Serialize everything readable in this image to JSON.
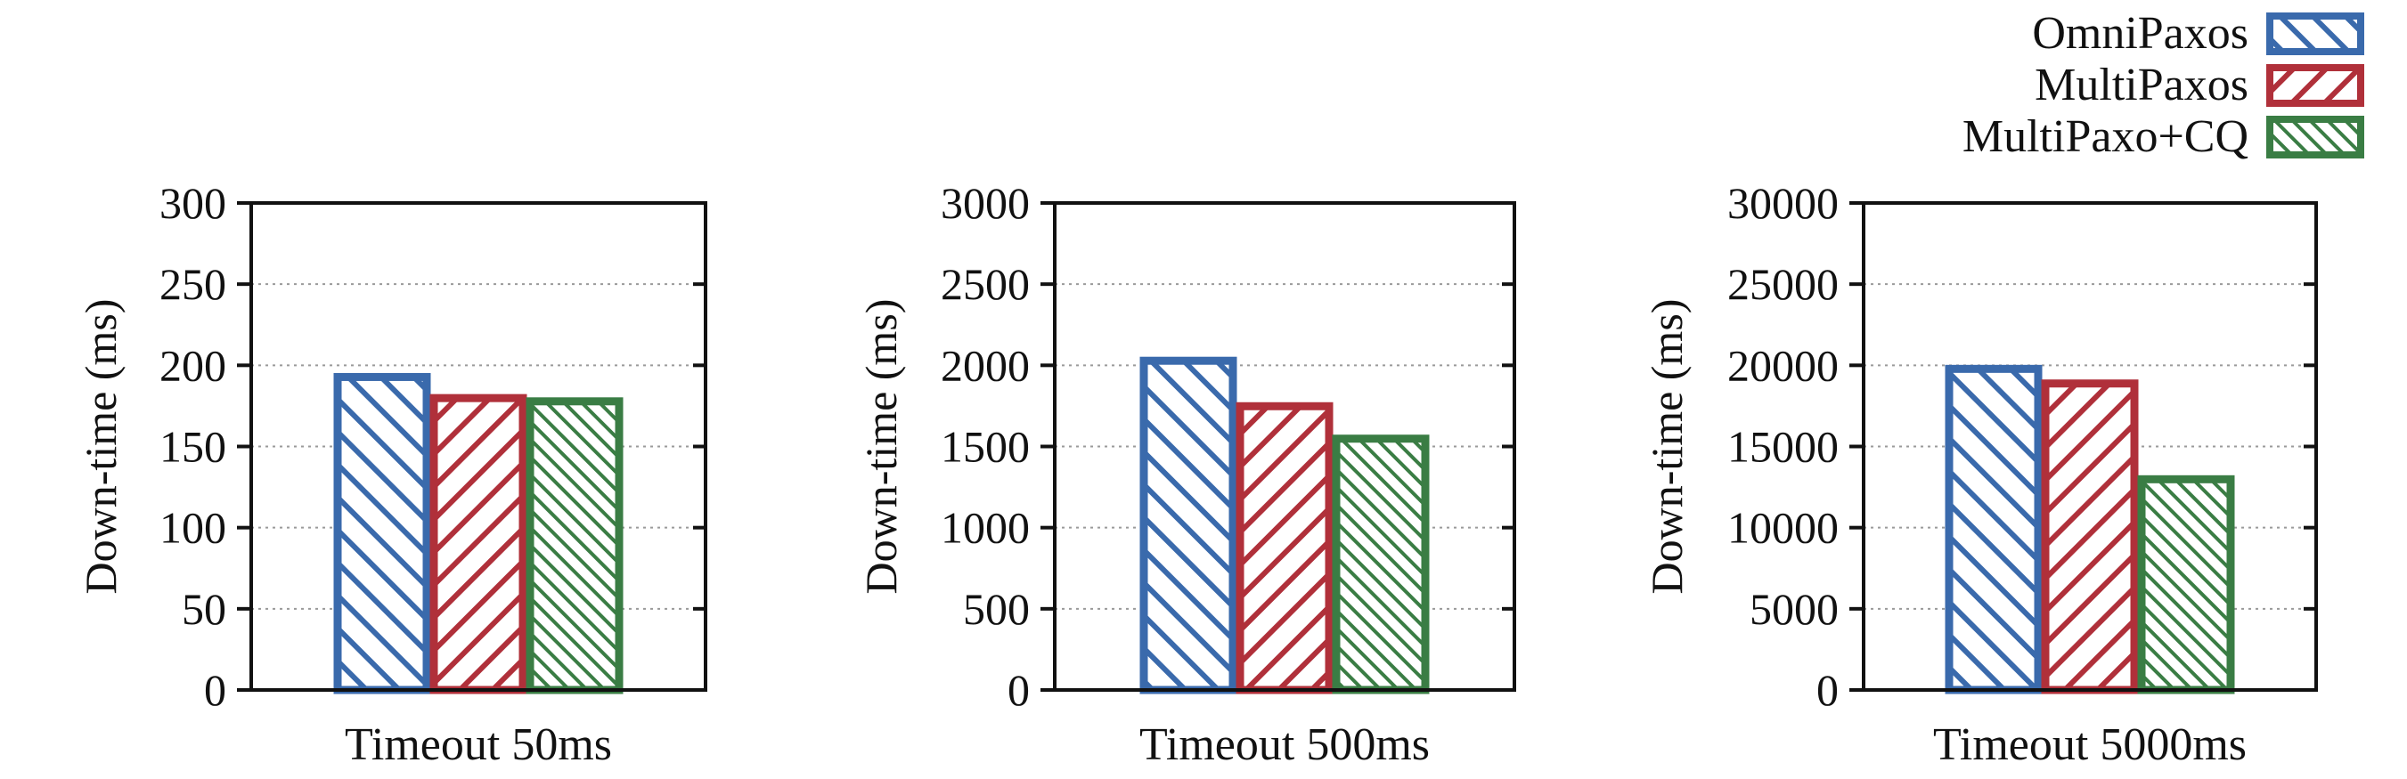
{
  "legend": {
    "placement": "top-right",
    "entries": [
      {
        "label": "OmniPaxos",
        "color": "#3a6aac",
        "pattern": "diag-back"
      },
      {
        "label": "MultiPaxos",
        "color": "#b0303a",
        "pattern": "diag-fwd"
      },
      {
        "label": "MultiPaxo+CQ",
        "color": "#3a7d44",
        "pattern": "diag-back-dense"
      }
    ]
  },
  "chart_data": [
    {
      "type": "bar",
      "categories": [
        "Timeout 50ms"
      ],
      "series": [
        {
          "name": "OmniPaxos",
          "values": [
            195
          ]
        },
        {
          "name": "MultiPaxos",
          "values": [
            182
          ]
        },
        {
          "name": "MultiPaxo+CQ",
          "values": [
            180
          ]
        }
      ],
      "xlabel": "Timeout 50ms",
      "ylabel": "Down-time (ms)",
      "ylim": [
        0,
        300
      ],
      "yticks": [
        0,
        50,
        100,
        150,
        200,
        250,
        300
      ],
      "grid": true
    },
    {
      "type": "bar",
      "categories": [
        "Timeout 500ms"
      ],
      "series": [
        {
          "name": "OmniPaxos",
          "values": [
            2050
          ]
        },
        {
          "name": "MultiPaxos",
          "values": [
            1770
          ]
        },
        {
          "name": "MultiPaxo+CQ",
          "values": [
            1570
          ]
        }
      ],
      "xlabel": "Timeout 500ms",
      "ylabel": "Down-time (ms)",
      "ylim": [
        0,
        3000
      ],
      "yticks": [
        0,
        500,
        1000,
        1500,
        2000,
        2500,
        3000
      ],
      "grid": true
    },
    {
      "type": "bar",
      "categories": [
        "Timeout 5000ms"
      ],
      "series": [
        {
          "name": "OmniPaxos",
          "values": [
            20000
          ]
        },
        {
          "name": "MultiPaxos",
          "values": [
            19100
          ]
        },
        {
          "name": "MultiPaxo+CQ",
          "values": [
            13200
          ]
        }
      ],
      "xlabel": "Timeout 5000ms",
      "ylabel": "Down-time (ms)",
      "ylim": [
        0,
        30000
      ],
      "yticks": [
        0,
        5000,
        10000,
        15000,
        20000,
        25000,
        30000
      ],
      "grid": true
    }
  ]
}
